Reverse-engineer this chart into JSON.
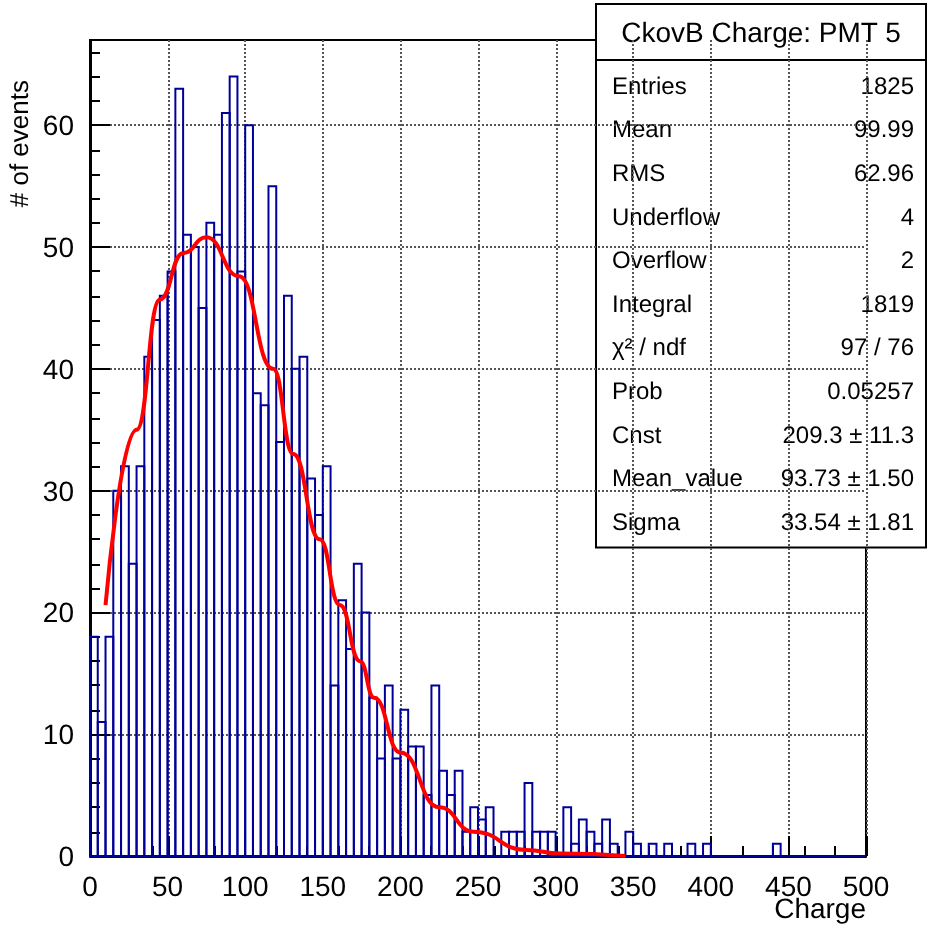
{
  "chart_data": {
    "type": "histogram",
    "title": "CkovB Charge: PMT 5",
    "xlabel": "Charge",
    "ylabel": "# of events",
    "bins": [
      0,
      5,
      10,
      15,
      20,
      25,
      30,
      35,
      40,
      45,
      50,
      55,
      60,
      65,
      70,
      75,
      80,
      85,
      90,
      95,
      100,
      105,
      110,
      115,
      120,
      125,
      130,
      135,
      140,
      145,
      150,
      155,
      160,
      165,
      170,
      175,
      180,
      185,
      190,
      195,
      200,
      205,
      210,
      215,
      220,
      225,
      230,
      235,
      240,
      245,
      250,
      255,
      260,
      265,
      270,
      275,
      280,
      285,
      290,
      295,
      300,
      305,
      310,
      315,
      320,
      325,
      330,
      335,
      340,
      345,
      350,
      355,
      360,
      365,
      370,
      375,
      380,
      385,
      390,
      395,
      400,
      405,
      410,
      415,
      420,
      425,
      430,
      435,
      440,
      445,
      450,
      455,
      460,
      465,
      470,
      475,
      480,
      485,
      490,
      495,
      500
    ],
    "series": [
      {
        "color": "#000099",
        "values": [
          18,
          11,
          18,
          30,
          32,
          24,
          32,
          41,
          44,
          46,
          48,
          63,
          51,
          50,
          45,
          52,
          51,
          61,
          64,
          48,
          60,
          38,
          37,
          55,
          34,
          46,
          40,
          41,
          31,
          28,
          32,
          14,
          21,
          17,
          24,
          20,
          13,
          8,
          14,
          8,
          12,
          9,
          9,
          5,
          14,
          7,
          5,
          7,
          2,
          4,
          3,
          4,
          0,
          2,
          2,
          2,
          6,
          2,
          2,
          2,
          0,
          4,
          1,
          3,
          2,
          1,
          3,
          1,
          0,
          2,
          1,
          0,
          1,
          0,
          1,
          0,
          0,
          1,
          0,
          1,
          0,
          0,
          0,
          0,
          0,
          0,
          0,
          0,
          1,
          0,
          0,
          0,
          0,
          0,
          0,
          0,
          0,
          0,
          0,
          0
        ]
      },
      {
        "type": "line",
        "color": "#ff0000",
        "x": [
          10,
          30,
          45,
          60,
          75,
          96,
          118,
          131,
          148,
          161,
          174,
          183,
          200,
          225,
          247,
          281,
          303,
          345
        ],
        "values": [
          20.6,
          35,
          45.7,
          49.5,
          50.8,
          47.6,
          40,
          33,
          26,
          20.6,
          16,
          13,
          8.5,
          4,
          2,
          0.5,
          0.2,
          0
        ]
      }
    ],
    "xlim": [
      0,
      500
    ],
    "xticks": [
      0,
      50,
      100,
      150,
      200,
      250,
      300,
      350,
      400,
      450,
      500
    ],
    "ylim": [
      0,
      67
    ],
    "yticks": [
      0,
      10,
      20,
      30,
      40,
      50,
      60
    ],
    "grid": true,
    "marker": "none",
    "line_style": "solid",
    "annotations": [
      "Entries\t1825",
      "Mean\t99.99",
      "RMS\t62.96",
      "Underflow\t4",
      "Overflow\t2",
      "Integral\t1819",
      "χ² / ndf\t97 / 76",
      "Prob\t0.05257",
      "Cnst\t209.3 ± 11.3",
      "Mean_value\t93.73 ± 1.50",
      "Sigma\t33.54 ± 1.81"
    ]
  }
}
